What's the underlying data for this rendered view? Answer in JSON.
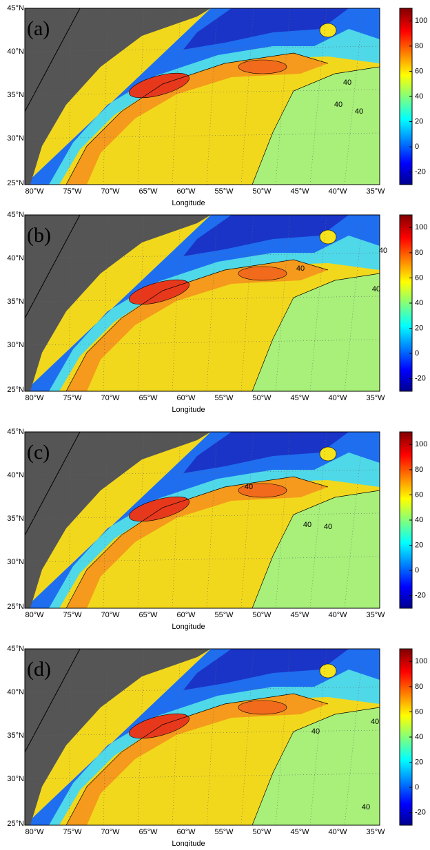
{
  "x_label": "Longitude",
  "lat_ticks": [
    "45°N",
    "40°N",
    "35°N",
    "30°N",
    "25°N"
  ],
  "lon_ticks": [
    "80°W",
    "75°W",
    "70°W",
    "65°W",
    "60°W",
    "55°W",
    "50°W",
    "45°W",
    "40°W",
    "35°W"
  ],
  "colorbar": {
    "lim": [
      -30,
      110
    ],
    "ticks": [
      100,
      80,
      60,
      40,
      20,
      0,
      -20
    ]
  },
  "panels": [
    {
      "label": "(a)",
      "contour_labels": [
        "40",
        "40",
        "40"
      ]
    },
    {
      "label": "(b)",
      "contour_labels": [
        "40",
        "40",
        "40"
      ]
    },
    {
      "label": "(c)",
      "contour_labels": [
        "40",
        "40",
        "40"
      ]
    },
    {
      "label": "(d)",
      "contour_labels": [
        "40",
        "40",
        "40"
      ]
    }
  ]
}
